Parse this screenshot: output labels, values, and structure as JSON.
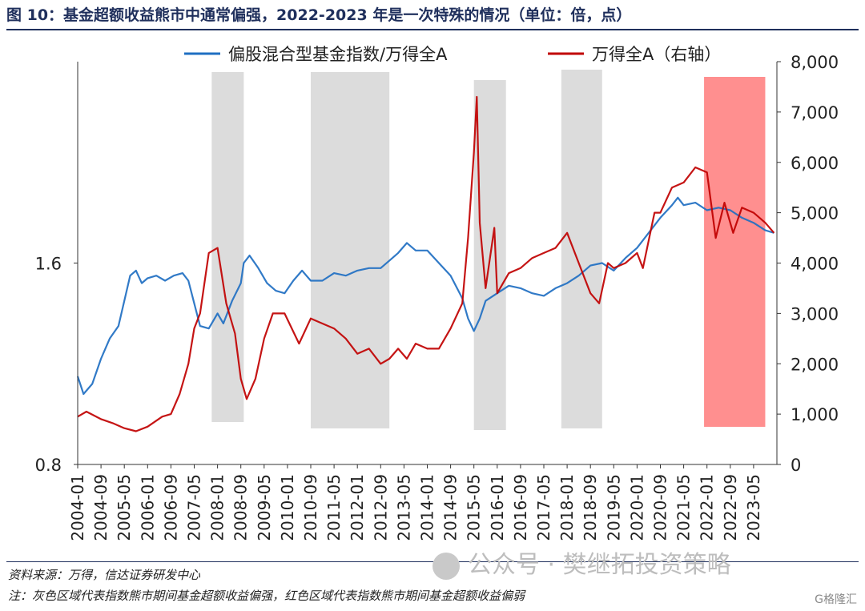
{
  "title": "图 10：基金超额收益熊市中通常偏强，2022-2023 年是一次特殊的情况（单位：倍，点）",
  "source": "资料来源：万得，信达证券研发中心",
  "note": "注：灰色区域代表指数熊市期间基金超额收益偏强，红色区域代表指数熊市期间基金超额收益偏弱",
  "watermark": "公众号 · 樊继拓投资策略",
  "logo": "G格隆汇",
  "chart_data": {
    "type": "line",
    "x_ticks": [
      "2004-01",
      "2004-09",
      "2005-05",
      "2006-01",
      "2006-09",
      "2007-05",
      "2008-01",
      "2008-09",
      "2009-05",
      "2010-01",
      "2010-09",
      "2011-05",
      "2012-01",
      "2012-09",
      "2013-05",
      "2014-01",
      "2014-09",
      "2015-05",
      "2016-01",
      "2016-09",
      "2017-05",
      "2018-01",
      "2018-09",
      "2019-05",
      "2020-01",
      "2020-09",
      "2021-05",
      "2022-01",
      "2022-09",
      "2023-05"
    ],
    "left_axis": {
      "ticks": [
        "0.8",
        "1.6"
      ],
      "range": [
        0.8,
        2.4
      ]
    },
    "right_axis": {
      "ticks": [
        "0",
        "1,000",
        "2,000",
        "3,000",
        "4,000",
        "5,000",
        "6,000",
        "7,000",
        "8,000"
      ],
      "range": [
        0,
        8000
      ]
    },
    "x_range": [
      "2004-01",
      "2023-12"
    ],
    "series": [
      {
        "name": "偏股混合型基金指数/万得全A",
        "axis": "left",
        "color": "#1f6fc2",
        "points": [
          [
            "2004-01",
            1.15
          ],
          [
            "2004-03",
            1.08
          ],
          [
            "2004-06",
            1.12
          ],
          [
            "2004-09",
            1.22
          ],
          [
            "2004-12",
            1.3
          ],
          [
            "2005-03",
            1.35
          ],
          [
            "2005-05",
            1.45
          ],
          [
            "2005-07",
            1.55
          ],
          [
            "2005-09",
            1.57
          ],
          [
            "2005-11",
            1.52
          ],
          [
            "2006-01",
            1.54
          ],
          [
            "2006-04",
            1.55
          ],
          [
            "2006-07",
            1.53
          ],
          [
            "2006-10",
            1.55
          ],
          [
            "2007-01",
            1.56
          ],
          [
            "2007-03",
            1.53
          ],
          [
            "2007-05",
            1.44
          ],
          [
            "2007-07",
            1.35
          ],
          [
            "2007-10",
            1.34
          ],
          [
            "2008-01",
            1.4
          ],
          [
            "2008-03",
            1.36
          ],
          [
            "2008-06",
            1.45
          ],
          [
            "2008-09",
            1.52
          ],
          [
            "2008-10",
            1.6
          ],
          [
            "2008-12",
            1.63
          ],
          [
            "2009-03",
            1.58
          ],
          [
            "2009-06",
            1.52
          ],
          [
            "2009-09",
            1.49
          ],
          [
            "2009-12",
            1.48
          ],
          [
            "2010-03",
            1.53
          ],
          [
            "2010-06",
            1.57
          ],
          [
            "2010-09",
            1.53
          ],
          [
            "2011-01",
            1.53
          ],
          [
            "2011-05",
            1.56
          ],
          [
            "2011-09",
            1.55
          ],
          [
            "2012-01",
            1.57
          ],
          [
            "2012-05",
            1.58
          ],
          [
            "2012-09",
            1.58
          ],
          [
            "2012-12",
            1.61
          ],
          [
            "2013-03",
            1.64
          ],
          [
            "2013-06",
            1.68
          ],
          [
            "2013-09",
            1.65
          ],
          [
            "2014-01",
            1.65
          ],
          [
            "2014-05",
            1.6
          ],
          [
            "2014-09",
            1.55
          ],
          [
            "2015-01",
            1.46
          ],
          [
            "2015-03",
            1.38
          ],
          [
            "2015-05",
            1.33
          ],
          [
            "2015-07",
            1.38
          ],
          [
            "2015-09",
            1.45
          ],
          [
            "2016-01",
            1.48
          ],
          [
            "2016-05",
            1.51
          ],
          [
            "2016-09",
            1.5
          ],
          [
            "2017-01",
            1.48
          ],
          [
            "2017-05",
            1.47
          ],
          [
            "2017-09",
            1.5
          ],
          [
            "2018-01",
            1.52
          ],
          [
            "2018-05",
            1.55
          ],
          [
            "2018-09",
            1.59
          ],
          [
            "2019-01",
            1.6
          ],
          [
            "2019-05",
            1.57
          ],
          [
            "2019-09",
            1.62
          ],
          [
            "2020-01",
            1.66
          ],
          [
            "2020-05",
            1.72
          ],
          [
            "2020-09",
            1.78
          ],
          [
            "2021-01",
            1.83
          ],
          [
            "2021-03",
            1.86
          ],
          [
            "2021-05",
            1.83
          ],
          [
            "2021-09",
            1.84
          ],
          [
            "2022-01",
            1.81
          ],
          [
            "2022-05",
            1.82
          ],
          [
            "2022-09",
            1.81
          ],
          [
            "2023-01",
            1.78
          ],
          [
            "2023-05",
            1.76
          ],
          [
            "2023-09",
            1.73
          ],
          [
            "2023-12",
            1.72
          ]
        ]
      },
      {
        "name": "万得全A（右轴）",
        "axis": "right",
        "color": "#c00000",
        "points": [
          [
            "2004-01",
            950
          ],
          [
            "2004-04",
            1050
          ],
          [
            "2004-09",
            900
          ],
          [
            "2005-01",
            820
          ],
          [
            "2005-05",
            720
          ],
          [
            "2005-09",
            660
          ],
          [
            "2006-01",
            750
          ],
          [
            "2006-06",
            950
          ],
          [
            "2006-09",
            1000
          ],
          [
            "2006-12",
            1400
          ],
          [
            "2007-03",
            2000
          ],
          [
            "2007-05",
            2700
          ],
          [
            "2007-07",
            3000
          ],
          [
            "2007-10",
            4200
          ],
          [
            "2008-01",
            4300
          ],
          [
            "2008-04",
            3200
          ],
          [
            "2008-07",
            2600
          ],
          [
            "2008-09",
            1700
          ],
          [
            "2008-11",
            1300
          ],
          [
            "2009-02",
            1700
          ],
          [
            "2009-05",
            2500
          ],
          [
            "2009-08",
            3000
          ],
          [
            "2009-12",
            3000
          ],
          [
            "2010-05",
            2400
          ],
          [
            "2010-09",
            2900
          ],
          [
            "2011-01",
            2800
          ],
          [
            "2011-05",
            2700
          ],
          [
            "2011-09",
            2500
          ],
          [
            "2012-01",
            2200
          ],
          [
            "2012-05",
            2300
          ],
          [
            "2012-09",
            2000
          ],
          [
            "2012-12",
            2100
          ],
          [
            "2013-03",
            2300
          ],
          [
            "2013-06",
            2100
          ],
          [
            "2013-09",
            2400
          ],
          [
            "2014-01",
            2300
          ],
          [
            "2014-05",
            2300
          ],
          [
            "2014-09",
            2700
          ],
          [
            "2015-01",
            3200
          ],
          [
            "2015-03",
            4500
          ],
          [
            "2015-05",
            6200
          ],
          [
            "2015-06",
            7300
          ],
          [
            "2015-07",
            4800
          ],
          [
            "2015-09",
            3500
          ],
          [
            "2015-12",
            4700
          ],
          [
            "2016-01",
            3400
          ],
          [
            "2016-05",
            3800
          ],
          [
            "2016-09",
            3900
          ],
          [
            "2017-01",
            4100
          ],
          [
            "2017-05",
            4200
          ],
          [
            "2017-09",
            4300
          ],
          [
            "2018-01",
            4600
          ],
          [
            "2018-05",
            4000
          ],
          [
            "2018-09",
            3400
          ],
          [
            "2018-12",
            3200
          ],
          [
            "2019-03",
            4000
          ],
          [
            "2019-05",
            3900
          ],
          [
            "2019-09",
            4000
          ],
          [
            "2020-01",
            4200
          ],
          [
            "2020-03",
            3900
          ],
          [
            "2020-07",
            5000
          ],
          [
            "2020-09",
            5000
          ],
          [
            "2021-01",
            5500
          ],
          [
            "2021-05",
            5600
          ],
          [
            "2021-09",
            5900
          ],
          [
            "2022-01",
            5800
          ],
          [
            "2022-04",
            4500
          ],
          [
            "2022-07",
            5200
          ],
          [
            "2022-10",
            4600
          ],
          [
            "2023-01",
            5100
          ],
          [
            "2023-05",
            5000
          ],
          [
            "2023-09",
            4800
          ],
          [
            "2023-12",
            4600
          ]
        ]
      }
    ],
    "shaded_regions": [
      {
        "color": "#dcdcdc",
        "start": "2007-11",
        "end": "2008-10"
      },
      {
        "color": "#dcdcdc",
        "start": "2010-09",
        "end": "2012-12"
      },
      {
        "color": "#dcdcdc",
        "start": "2015-05",
        "end": "2016-04"
      },
      {
        "color": "#dcdcdc",
        "start": "2017-11",
        "end": "2019-01"
      },
      {
        "color": "#ff8f8f",
        "start": "2021-12",
        "end": "2023-09"
      }
    ],
    "legend_position": "top",
    "grid": false
  }
}
